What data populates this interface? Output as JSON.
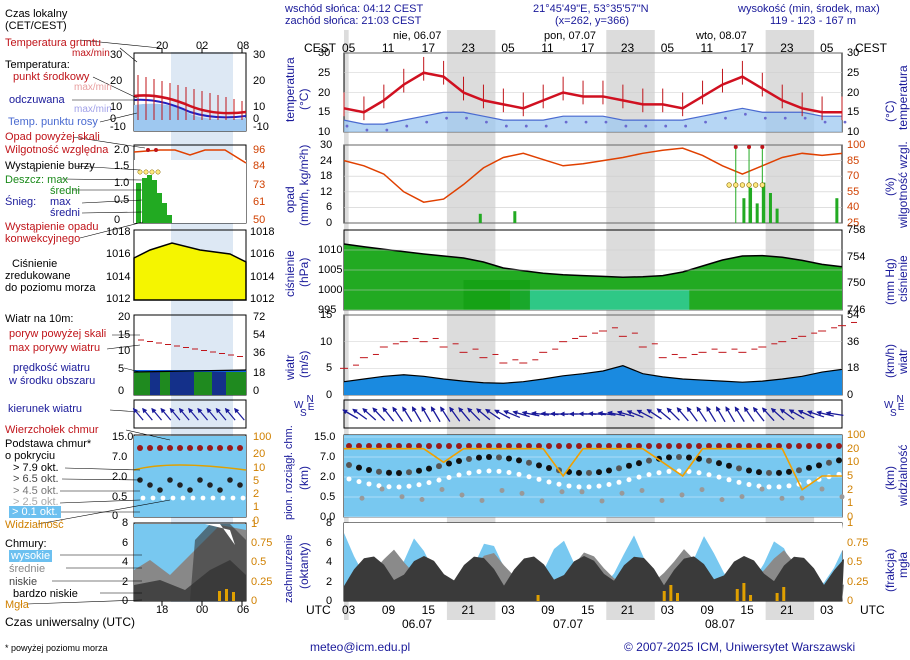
{
  "header": {
    "sunrise": "wschód słońca: 04:12 CEST",
    "sunset": "zachód słońca: 21:03 CEST",
    "coords": "21°45'49\"E, 53°35'57\"N",
    "grid": "(x=262,  y=366)",
    "altitude_title": "wysokość (min, środek, max)",
    "altitude_values": "119 - 123 - 167 m"
  },
  "legend": {
    "local_time": "Czas lokalny",
    "local_time_sub": "(CET/CEST)",
    "ground_temp": "Temperatura gruntu",
    "ground_temp_sub": "max/min",
    "temperature": "Temperatura:",
    "center_point": "punkt środkowy",
    "max_min": "max/min",
    "felt": "odczuwana",
    "felt_maxmin": "max/min",
    "dew_point": "Temp. punktu rosy",
    "rain_above": "Opad powyżej skali",
    "humidity": "Wilgotność względna",
    "storm": "Wystąpienie burzy",
    "rain_max": "Deszcz: max",
    "rain_mean": "średni",
    "snow_max": "Śnieg:",
    "snow_max2": "max",
    "snow_mean": "średni",
    "convective": "Wystąpienie opadu",
    "convective2": "konwekcyjnego",
    "pressure1": "Ciśnienie",
    "pressure2": "zredukowane",
    "pressure3": "do poziomu morza",
    "wind_title": "Wiatr na 10m:",
    "gust_above": "poryw powyżej skali",
    "gust_max": "max porywy wiatru",
    "wind_speed": "prędkość wiatru",
    "wind_area": "w środku obszaru",
    "wind_dir": "kierunek wiatru",
    "cloud_top": "Wierzchołek chmur",
    "cloud_base": "Podstawa chmur*",
    "cloud_base2": "o pokryciu",
    "okt1": "> 7.9 okt.",
    "okt2": "> 6.5 okt.",
    "okt3": "> 4.5 okt.",
    "okt4": "> 2.5 okt.",
    "okt5": "> 0.1 okt.",
    "visibility": "Widzialność",
    "clouds": "Chmury:",
    "high": "wysokie",
    "mid": "średnie",
    "low": "niskie",
    "very_low": "bardzo niskie",
    "fog": "Mgła",
    "utc_time": "Czas uniwersalny (UTC)",
    "footnote": "* powyżej poziomu morza"
  },
  "mini_axis": {
    "top_hours": [
      "20",
      "02",
      "08"
    ],
    "bottom_hours": [
      "18",
      "00",
      "06"
    ]
  },
  "main_axis": {
    "cest_label": "CEST",
    "utc_label": "UTC",
    "top_hours": [
      "05",
      "11",
      "17",
      "23",
      "05",
      "11",
      "17",
      "23",
      "05",
      "11",
      "17",
      "23",
      "05"
    ],
    "bottom_hours": [
      "03",
      "09",
      "15",
      "21",
      "03",
      "09",
      "15",
      "21",
      "03",
      "09",
      "15",
      "21",
      "03"
    ],
    "top_days": [
      "nie, 06.07",
      "pon, 07.07",
      "wto, 08.07"
    ],
    "bottom_days": [
      "06.07",
      "07.07",
      "08.07"
    ]
  },
  "panel_labels": {
    "temp_left": "temperatura",
    "temp_left_unit": "(°C)",
    "temp_right": "temperatura",
    "temp_right_unit": "(°C)",
    "rain_left": "opad",
    "rain_left_unit": "(mm/h, kg/m²h)",
    "rain_right": "wilgotność wzgl.",
    "rain_right_unit": "(%)",
    "press_left": "ciśnienie",
    "press_left_unit": "(hPa)",
    "press_right": "ciśnienie",
    "press_right_unit": "(mm Hg)",
    "wind_left": "wiatr",
    "wind_left_unit": "(m/s)",
    "wind_right": "wiatr",
    "wind_right_unit": "(km/h)",
    "cloud_left": "pion. rozciągł. chm.",
    "cloud_left_unit": "(km)",
    "cloud_right": "widzialność",
    "cloud_right_unit": "(km)",
    "cover_left": "zachmurzenie",
    "cover_left_unit": "(oktanty)",
    "cover_right": "mgła",
    "cover_right_unit": "(frakcja)",
    "compass_N": "N",
    "compass_W": "W",
    "compass_E": "E",
    "compass_S": "S"
  },
  "footer": {
    "email": "meteo@icm.edu.pl",
    "copyright": "© 2007-2025 ICM, Uniwersytet Warszawski"
  },
  "colors": {
    "night": "#dcdcdc",
    "temp_line": "#d01020",
    "felt_line": "#2020c0",
    "dew_fill": "#9ec8f0",
    "humidity": "#e04000",
    "pressure": "#22aa22",
    "wind": "#1060e0",
    "sky": "#78c8f0",
    "cloud_dark": "#333333"
  },
  "chart_data": [
    {
      "type": "line",
      "name": "temperature",
      "ylim": [
        10,
        30
      ],
      "yticks": [
        10,
        15,
        20,
        25,
        30
      ],
      "x_hours": [
        0,
        3,
        6,
        9,
        12,
        15,
        18,
        21,
        24,
        27,
        30,
        33,
        36,
        39,
        42,
        45,
        48,
        51,
        54,
        57,
        60,
        63,
        66,
        69,
        72,
        75
      ],
      "values": [
        16,
        15,
        18,
        22,
        25,
        24,
        20,
        18,
        17,
        16,
        18,
        20,
        19,
        19,
        18,
        17,
        17,
        16,
        19,
        22,
        24,
        21,
        18,
        16,
        15,
        15
      ],
      "dew_point": [
        13,
        12,
        12,
        13,
        14,
        15,
        15,
        14,
        13,
        13,
        13,
        14,
        14,
        14,
        13,
        13,
        13,
        13,
        14,
        15,
        16,
        15,
        15,
        15,
        14,
        14
      ]
    },
    {
      "type": "line",
      "name": "humidity",
      "ylim": [
        25,
        100
      ],
      "yticks_left": [
        0,
        6,
        12,
        18,
        24,
        30
      ],
      "yticks_right": [
        25,
        40,
        55,
        70,
        85,
        100
      ],
      "values": [
        85,
        80,
        72,
        55,
        45,
        48,
        62,
        78,
        88,
        92,
        86,
        80,
        82,
        85,
        88,
        92,
        95,
        97,
        90,
        80,
        72,
        80,
        88,
        92,
        90,
        92
      ]
    },
    {
      "type": "area",
      "name": "pressure",
      "ylim": [
        995,
        1015
      ],
      "yticks_left": [
        995,
        1000,
        1005,
        1010
      ],
      "yticks_right": [
        746,
        750,
        754,
        758
      ],
      "values": [
        1011.5,
        1010.8,
        1010.2,
        1009.6,
        1009,
        1008.5,
        1008,
        1007,
        1005.5,
        1004.8,
        1004.2,
        1003.8,
        1003.6,
        1003.4,
        1003.2,
        1003.3,
        1003.6,
        1004.5,
        1006,
        1007.5,
        1008.5,
        1008.6,
        1008.2,
        1007.4,
        1006.4,
        1005.8
      ]
    },
    {
      "type": "area",
      "name": "wind",
      "ylim": [
        0,
        15
      ],
      "yticks_left": [
        0,
        5,
        10,
        15
      ],
      "yticks_right": [
        0,
        18,
        36,
        54
      ],
      "values": [
        2.5,
        3,
        3.5,
        3.8,
        3.5,
        3,
        2.6,
        2.3,
        2.2,
        2.5,
        3,
        3.6,
        4,
        4.5,
        5.5,
        4,
        3.4,
        3,
        2.8,
        2.6,
        2.4,
        2.6,
        3,
        3.5,
        4.3,
        4.8
      ],
      "gusts": [
        5,
        7,
        9,
        10,
        10,
        9,
        8,
        7,
        6,
        6,
        8,
        10,
        11,
        12,
        11,
        9,
        7,
        7,
        8,
        8,
        8,
        9,
        10,
        11,
        12,
        13
      ]
    },
    {
      "type": "scatter",
      "name": "cloud_base",
      "ylim": [
        0,
        15
      ],
      "yticks_left": [
        0.0,
        0.5,
        2.0,
        7.0,
        15.0
      ],
      "yticks_right": [
        0,
        1,
        2,
        5,
        10,
        20,
        100
      ],
      "visibility": [
        20,
        20,
        20,
        20,
        20,
        18,
        20,
        20,
        20,
        20,
        20,
        5,
        20,
        20,
        20,
        20,
        10,
        5,
        20,
        20,
        20,
        20,
        20,
        3,
        5,
        5
      ]
    },
    {
      "type": "area",
      "name": "cloud_cover",
      "ylim": [
        0,
        8
      ],
      "yticks_left": [
        0,
        2,
        4,
        6,
        8
      ],
      "yticks_right": [
        0,
        0.25,
        0.5,
        0.75,
        1
      ]
    }
  ]
}
